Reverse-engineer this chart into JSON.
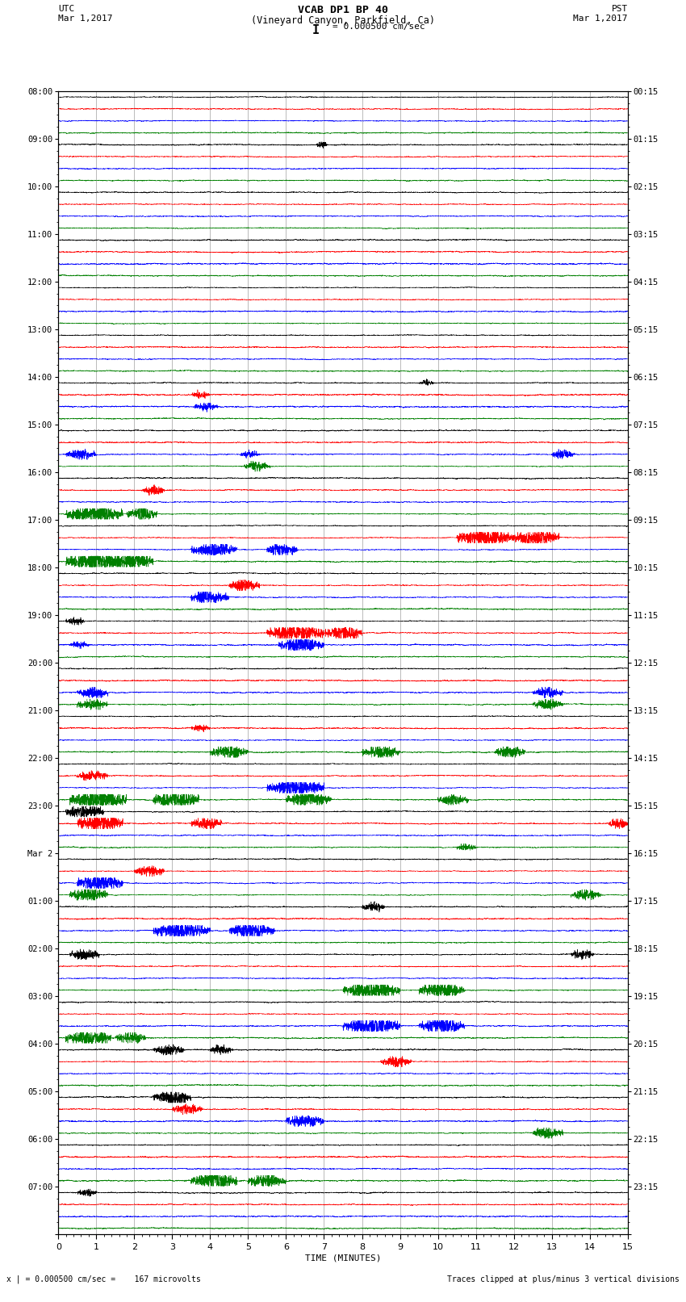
{
  "title_line1": "VCAB DP1 BP 40",
  "title_line2": "(Vineyard Canyon, Parkfield, Ca)",
  "scale_label": "= 0.000500 cm/sec",
  "left_label": "UTC",
  "right_label": "PST",
  "left_date": "Mar 1,2017",
  "right_date": "Mar 1,2017",
  "xlabel": "TIME (MINUTES)",
  "bottom_left": "x | = 0.000500 cm/sec =    167 microvolts",
  "bottom_right": "Traces clipped at plus/minus 3 vertical divisions",
  "utc_labels": [
    "08:00",
    "09:00",
    "10:00",
    "11:00",
    "12:00",
    "13:00",
    "14:00",
    "15:00",
    "16:00",
    "17:00",
    "18:00",
    "19:00",
    "20:00",
    "21:00",
    "22:00",
    "23:00",
    "Mar 2",
    "01:00",
    "02:00",
    "03:00",
    "04:00",
    "05:00",
    "06:00",
    "07:00"
  ],
  "pst_labels": [
    "00:15",
    "01:15",
    "02:15",
    "03:15",
    "04:15",
    "05:15",
    "06:15",
    "07:15",
    "08:15",
    "09:15",
    "10:15",
    "11:15",
    "12:15",
    "13:15",
    "14:15",
    "15:15",
    "16:15",
    "17:15",
    "18:15",
    "19:15",
    "20:15",
    "21:15",
    "22:15",
    "23:15"
  ],
  "num_hours": 24,
  "traces_per_hour": 4,
  "colors": [
    "black",
    "red",
    "blue",
    "green"
  ],
  "xlim": [
    0,
    15
  ],
  "bg_color": "white",
  "noise_seed": 42,
  "base_noise_amp": 0.06,
  "grid_color": "#888888",
  "trace_lw": 0.4
}
